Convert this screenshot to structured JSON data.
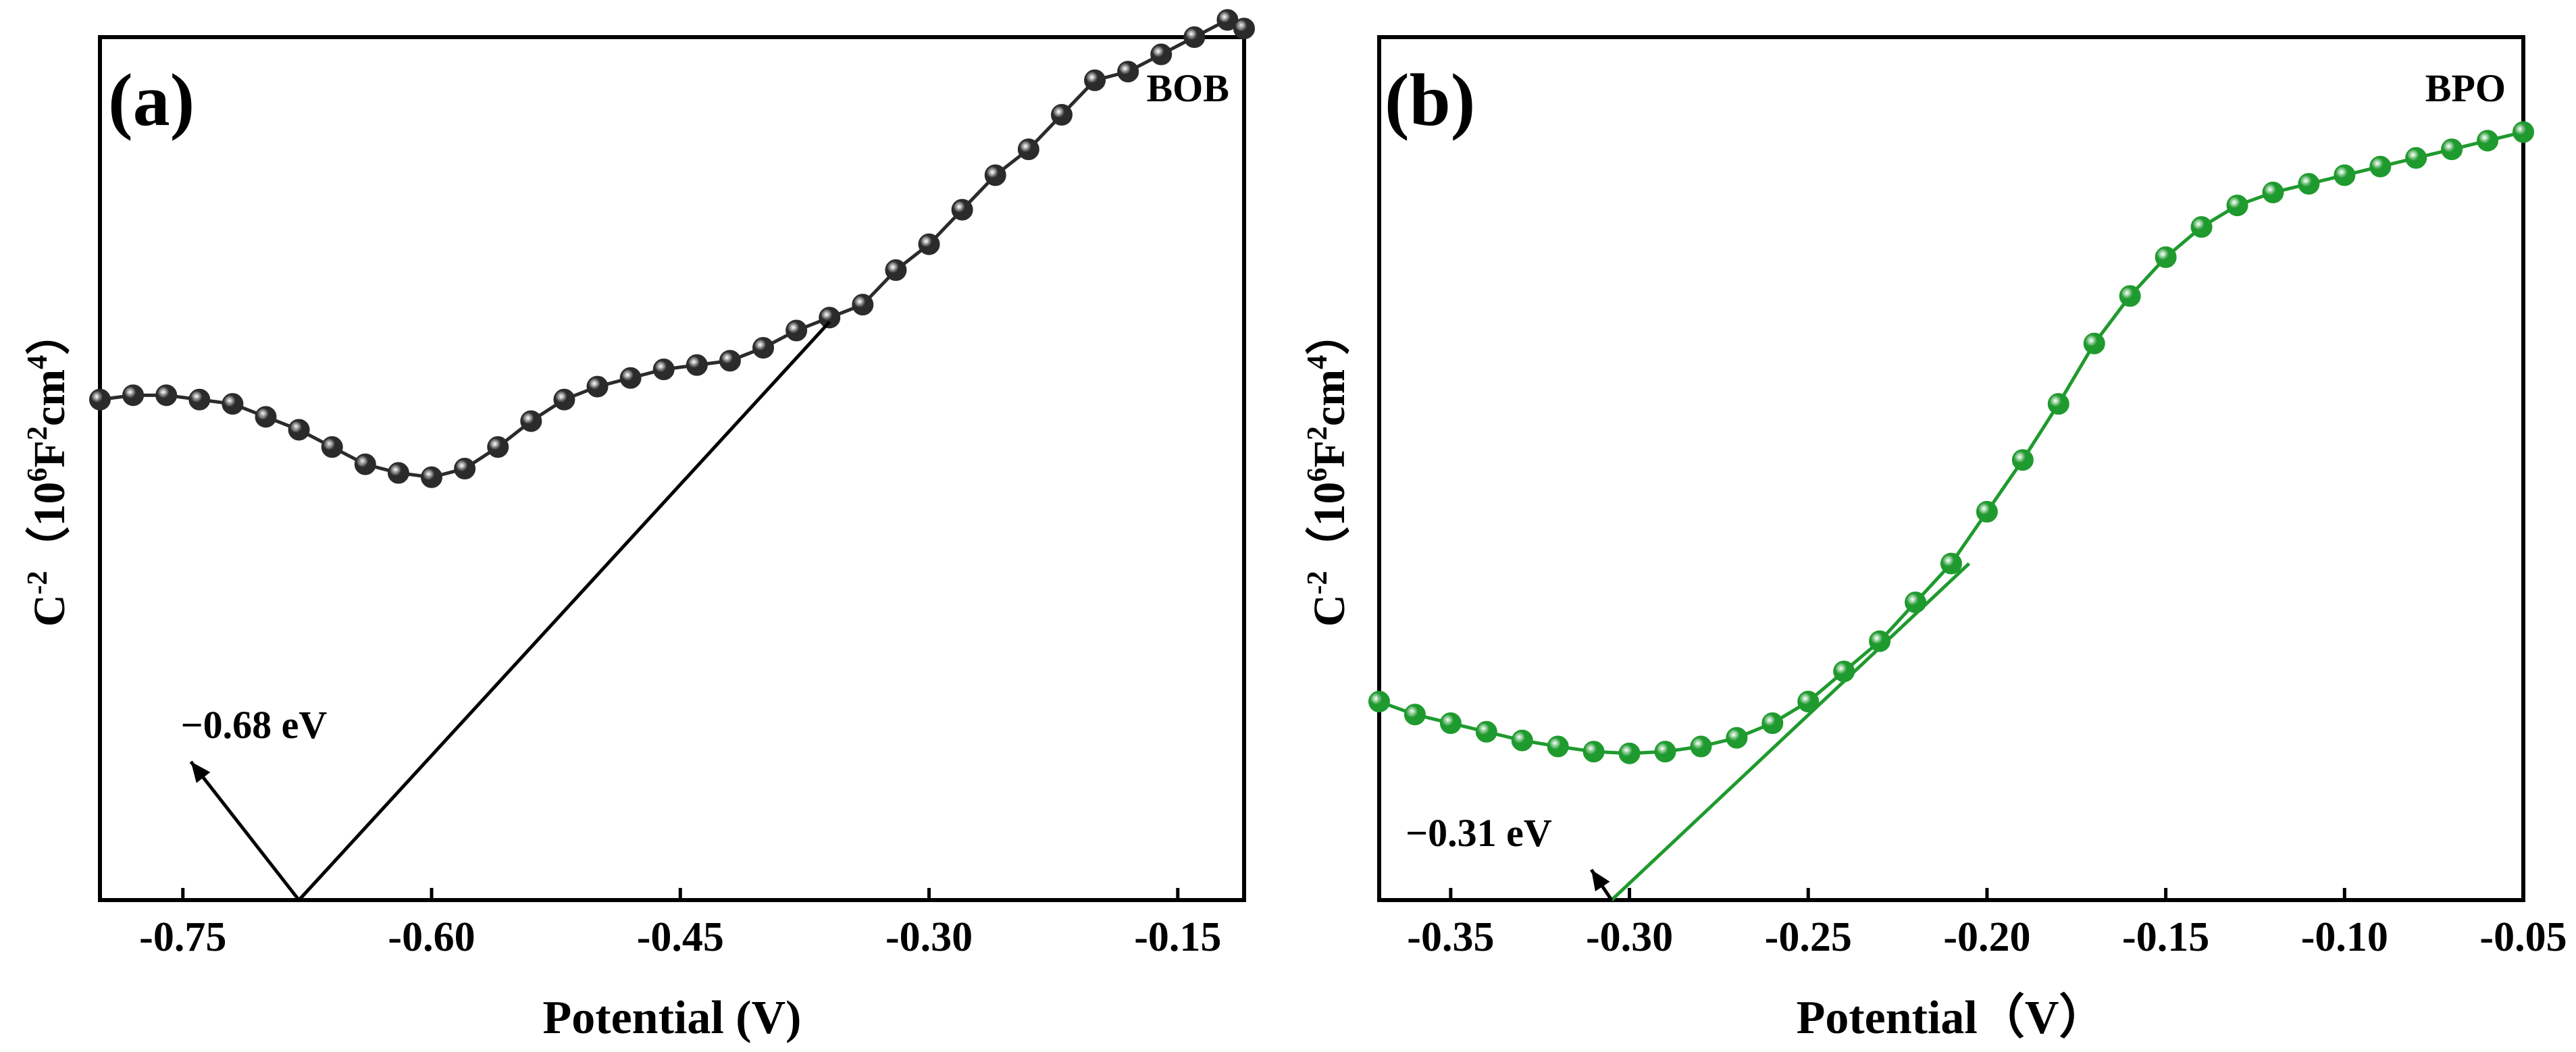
{
  "chart_data": [
    {
      "type": "scatter",
      "panel_label": "(a)",
      "sample": "BOB",
      "xlabel": "Potential (V)",
      "ylabel_base": "C",
      "ylabel_exp": "-2",
      "ylabel_open": "（10",
      "ylabel_exp2": "6",
      "ylabel_mid": "F",
      "ylabel_exp3": "2",
      "ylabel_mid2": "cm",
      "ylabel_exp4": "4",
      "ylabel_close": "）",
      "xlim": [
        -0.8,
        -0.11
      ],
      "ylim": [
        0,
        10
      ],
      "xticks": [
        -0.75,
        -0.6,
        -0.45,
        -0.3,
        -0.15
      ],
      "xtick_labels": [
        "-0.75",
        "-0.60",
        "-0.45",
        "-0.30",
        "-0.15"
      ],
      "marker_color": "#2b2b2b",
      "line_color": "#000000",
      "series": [
        {
          "name": "BOB",
          "x": [
            -0.8,
            -0.78,
            -0.76,
            -0.74,
            -0.72,
            -0.7,
            -0.68,
            -0.66,
            -0.64,
            -0.62,
            -0.6,
            -0.58,
            -0.56,
            -0.54,
            -0.52,
            -0.5,
            -0.48,
            -0.46,
            -0.44,
            -0.42,
            -0.4,
            -0.38,
            -0.36,
            -0.34,
            -0.32,
            -0.3,
            -0.28,
            -0.26,
            -0.24,
            -0.22,
            -0.2,
            -0.18,
            -0.16,
            -0.14,
            -0.12,
            -0.11
          ],
          "y": [
            5.8,
            5.85,
            5.85,
            5.8,
            5.75,
            5.6,
            5.45,
            5.25,
            5.05,
            4.95,
            4.9,
            5.0,
            5.25,
            5.55,
            5.8,
            5.95,
            6.05,
            6.15,
            6.2,
            6.25,
            6.4,
            6.6,
            6.75,
            6.9,
            7.3,
            7.6,
            8.0,
            8.4,
            8.7,
            9.1,
            9.5,
            9.6,
            9.8,
            10.0,
            10.2,
            10.1
          ]
        }
      ],
      "fit_line": {
        "x": [
          -0.68,
          -0.36
        ],
        "y": [
          0.0,
          6.7
        ]
      },
      "annotation": {
        "text": "−0.68 eV",
        "x": -0.68,
        "y": 0.0
      }
    },
    {
      "type": "scatter",
      "panel_label": "(b)",
      "sample": "BPO",
      "xlabel": "Potential（V）",
      "ylabel_base": "C",
      "ylabel_exp": "-2",
      "ylabel_open": "（10",
      "ylabel_exp2": "6",
      "ylabel_mid": "F",
      "ylabel_exp3": "2",
      "ylabel_mid2": "cm",
      "ylabel_exp4": "4",
      "ylabel_close": "）",
      "xlim": [
        -0.37,
        -0.05
      ],
      "ylim": [
        0,
        10
      ],
      "xticks": [
        -0.35,
        -0.3,
        -0.25,
        -0.2,
        -0.15,
        -0.1,
        -0.05
      ],
      "xtick_labels": [
        "-0.35",
        "-0.30",
        "-0.25",
        "-0.20",
        "-0.15",
        "-0.10",
        "-0.05"
      ],
      "marker_color": "#1f9a2e",
      "line_color": "#1f9a2e",
      "series": [
        {
          "name": "BPO",
          "x": [
            -0.37,
            -0.36,
            -0.35,
            -0.34,
            -0.33,
            -0.32,
            -0.31,
            -0.3,
            -0.29,
            -0.28,
            -0.27,
            -0.26,
            -0.25,
            -0.24,
            -0.23,
            -0.22,
            -0.21,
            -0.2,
            -0.19,
            -0.18,
            -0.17,
            -0.16,
            -0.15,
            -0.14,
            -0.13,
            -0.12,
            -0.11,
            -0.1,
            -0.09,
            -0.08,
            -0.07,
            -0.06,
            -0.05
          ],
          "y": [
            2.3,
            2.15,
            2.05,
            1.95,
            1.85,
            1.78,
            1.72,
            1.7,
            1.72,
            1.78,
            1.88,
            2.05,
            2.3,
            2.65,
            3.0,
            3.45,
            3.9,
            4.5,
            5.1,
            5.75,
            6.45,
            7.0,
            7.45,
            7.8,
            8.05,
            8.2,
            8.3,
            8.4,
            8.5,
            8.6,
            8.7,
            8.8,
            8.9
          ]
        }
      ],
      "fit_line": {
        "x": [
          -0.305,
          -0.205
        ],
        "y": [
          0.0,
          3.9
        ]
      },
      "annotation": {
        "text": "−0.31 eV",
        "x": -0.305,
        "y": 0.0
      }
    }
  ]
}
